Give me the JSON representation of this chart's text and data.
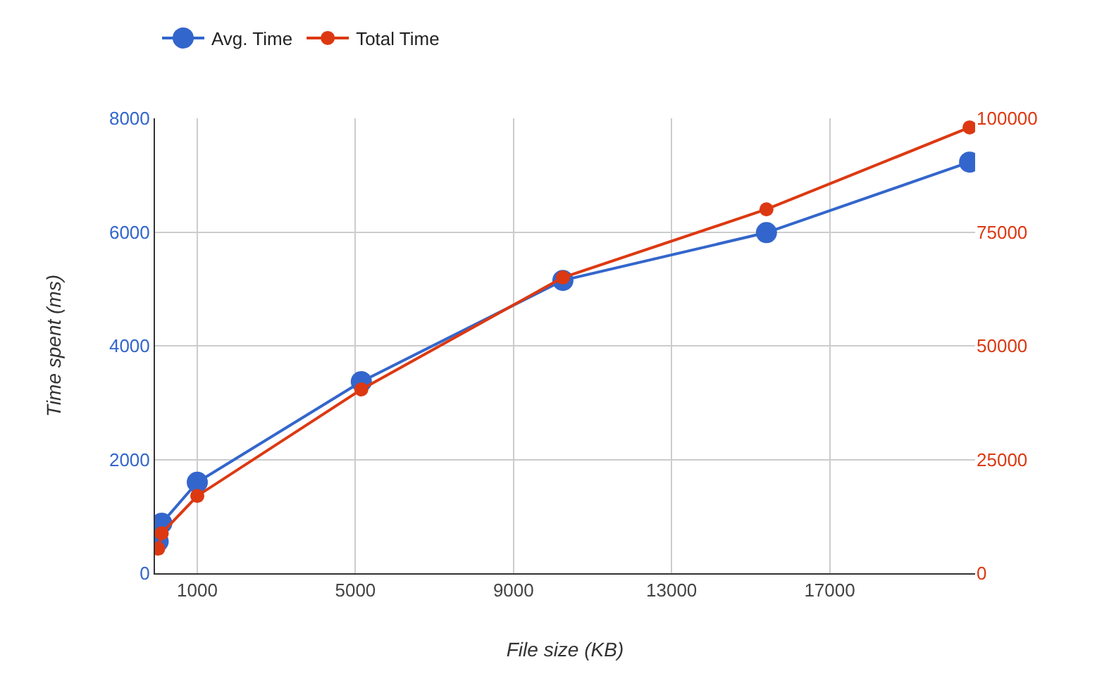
{
  "chart_data": {
    "type": "line",
    "xlabel": "File size (KB)",
    "ylabel": "Time spent (ms)",
    "x": [
      10,
      100,
      1000,
      5150,
      10250,
      15400,
      20540
    ],
    "series": [
      {
        "name": "Avg. Time",
        "color": "#3366cc",
        "values": [
          560,
          880,
          1600,
          3370,
          5150,
          5990,
          7230
        ]
      },
      {
        "name": "Total Time",
        "color": "#dc3912",
        "axis": "y2",
        "values": [
          5400,
          8800,
          17000,
          40400,
          65000,
          80000,
          98000
        ]
      }
    ],
    "xlim": [
      -70,
      20680
    ],
    "xticks": [
      1000,
      5000,
      9000,
      13000,
      17000
    ],
    "ylim": [
      0,
      8000
    ],
    "yticks": [
      0,
      2000,
      4000,
      6000,
      8000
    ],
    "y2lim": [
      0,
      100000
    ],
    "y2ticks": [
      0,
      25000,
      50000,
      75000,
      100000
    ],
    "grid": true,
    "legend": "top",
    "marker": "circle",
    "line_style": "solid"
  }
}
